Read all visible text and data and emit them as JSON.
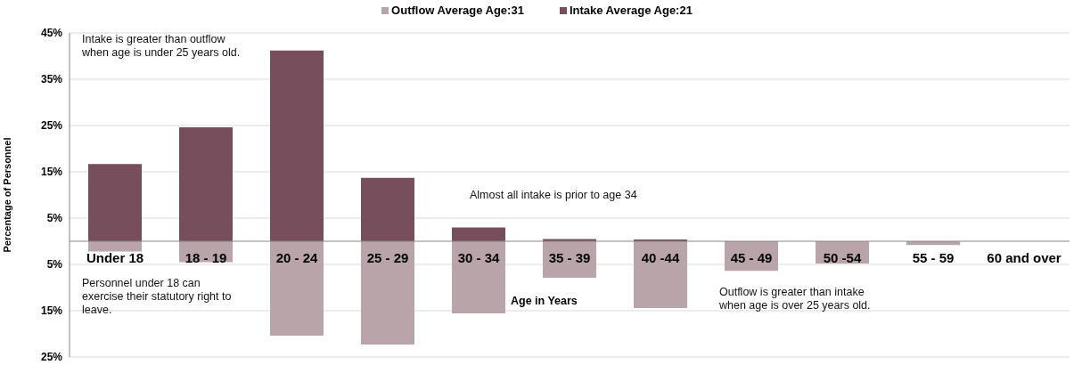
{
  "chart_data": {
    "type": "bar",
    "stacked": true,
    "ylabel": "Percentage of Personnel",
    "xlabel": "Age in Years",
    "categories": [
      "Under 18",
      "18 - 19",
      "20 - 24",
      "25 - 29",
      "30 - 34",
      "35 - 39",
      "40 -44",
      "45 - 49",
      "50 -54",
      "55 - 59",
      "60 and over"
    ],
    "series": [
      {
        "name": "Outflow Average Age:31",
        "color": "#b9a5a9",
        "values": [
          -2.2,
          -4.5,
          -20.4,
          -22.3,
          -15.6,
          -7.9,
          -14.4,
          -6.4,
          -4.8,
          -0.8,
          null
        ]
      },
      {
        "name": "Intake Average Age:21",
        "color": "#774f5c",
        "values": [
          16.7,
          24.6,
          41.2,
          13.7,
          3.0,
          0.5,
          0.4,
          null,
          null,
          null,
          null
        ]
      }
    ],
    "ylim": [
      -25,
      45
    ],
    "yticks": [
      {
        "value": -25,
        "label": "25%"
      },
      {
        "value": -15,
        "label": "15%"
      },
      {
        "value": -5,
        "label": "5%"
      },
      {
        "value": 5,
        "label": "5%"
      },
      {
        "value": 15,
        "label": "15%"
      },
      {
        "value": 25,
        "label": "25%"
      },
      {
        "value": 35,
        "label": "35%"
      },
      {
        "value": 45,
        "label": "45%"
      }
    ],
    "grid": "y",
    "legend": "top",
    "annotations": [
      "Intake is greater than outflow\nwhen age is under 25 years old.",
      "Almost all intake is prior to age 34",
      "Personnel under 18 can\nexercise their statutory right to\nleave.",
      "Outflow is greater than intake\nwhen age is over 25 years old."
    ]
  }
}
